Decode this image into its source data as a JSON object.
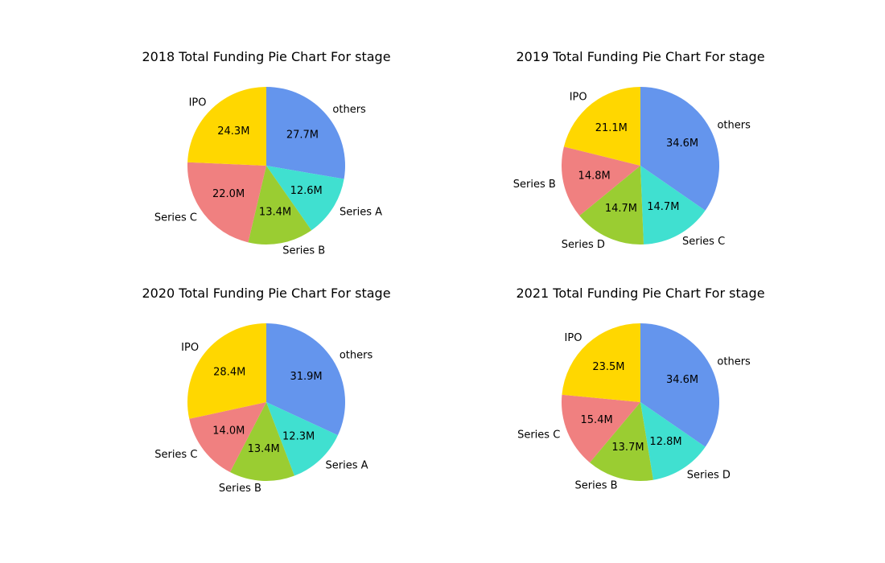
{
  "chart_data": [
    {
      "type": "pie",
      "title": "2018 Total Funding Pie Chart For stage",
      "slices": [
        {
          "label": "others",
          "value": 27.7,
          "display": "27.7M",
          "color": "#6495ED"
        },
        {
          "label": "Series A",
          "value": 12.6,
          "display": "12.6M",
          "color": "#40E0D0"
        },
        {
          "label": "Series B",
          "value": 13.4,
          "display": "13.4M",
          "color": "#9ACD32"
        },
        {
          "label": "Series C",
          "value": 22.0,
          "display": "22.0M",
          "color": "#F08080"
        },
        {
          "label": "IPO",
          "value": 24.3,
          "display": "24.3M",
          "color": "#FFD700"
        }
      ]
    },
    {
      "type": "pie",
      "title": "2019 Total Funding Pie Chart For stage",
      "slices": [
        {
          "label": "others",
          "value": 34.6,
          "display": "34.6M",
          "color": "#6495ED"
        },
        {
          "label": "Series C",
          "value": 14.7,
          "display": "14.7M",
          "color": "#40E0D0"
        },
        {
          "label": "Series D",
          "value": 14.7,
          "display": "14.7M",
          "color": "#9ACD32"
        },
        {
          "label": "Series B",
          "value": 14.8,
          "display": "14.8M",
          "color": "#F08080"
        },
        {
          "label": "IPO",
          "value": 21.1,
          "display": "21.1M",
          "color": "#FFD700"
        }
      ]
    },
    {
      "type": "pie",
      "title": "2020 Total Funding Pie Chart For stage",
      "slices": [
        {
          "label": "others",
          "value": 31.9,
          "display": "31.9M",
          "color": "#6495ED"
        },
        {
          "label": "Series A",
          "value": 12.3,
          "display": "12.3M",
          "color": "#40E0D0"
        },
        {
          "label": "Series B",
          "value": 13.4,
          "display": "13.4M",
          "color": "#9ACD32"
        },
        {
          "label": "Series C",
          "value": 14.0,
          "display": "14.0M",
          "color": "#F08080"
        },
        {
          "label": "IPO",
          "value": 28.4,
          "display": "28.4M",
          "color": "#FFD700"
        }
      ]
    },
    {
      "type": "pie",
      "title": "2021 Total Funding Pie Chart For stage",
      "slices": [
        {
          "label": "others",
          "value": 34.6,
          "display": "34.6M",
          "color": "#6495ED"
        },
        {
          "label": "Series D",
          "value": 12.8,
          "display": "12.8M",
          "color": "#40E0D0"
        },
        {
          "label": "Series B",
          "value": 13.7,
          "display": "13.7M",
          "color": "#9ACD32"
        },
        {
          "label": "Series C",
          "value": 15.4,
          "display": "15.4M",
          "color": "#F08080"
        },
        {
          "label": "IPO",
          "value": 23.5,
          "display": "23.5M",
          "color": "#FFD700"
        }
      ]
    }
  ]
}
